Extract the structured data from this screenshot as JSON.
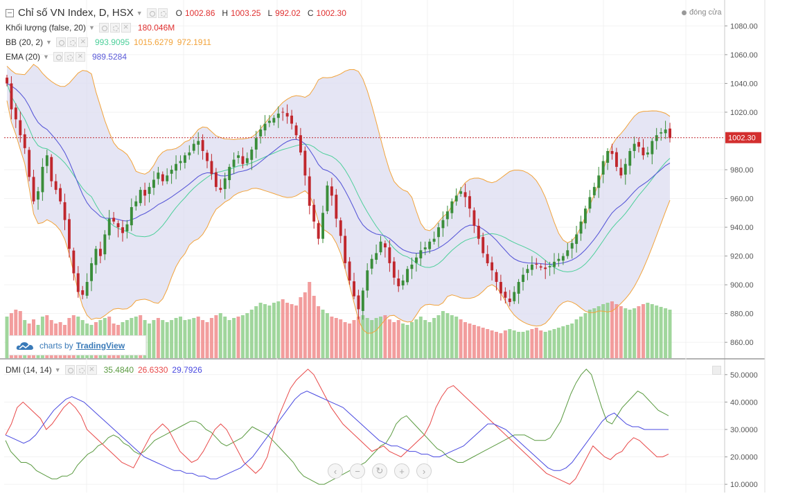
{
  "header": {
    "title": "Chỉ số VN Index, D, HSX",
    "ohlc": [
      {
        "label": "O",
        "value": "1002.86"
      },
      {
        "label": "H",
        "value": "1003.25"
      },
      {
        "label": "L",
        "value": "992.02"
      },
      {
        "label": "C",
        "value": "1002.30"
      }
    ],
    "market_status": "đóng cửa"
  },
  "indicators": {
    "volume": {
      "name": "Khối lượng (false, 20)",
      "value": "180.046M",
      "color": "#e03030"
    },
    "bb": {
      "name": "BB (20, 2)",
      "basis": "993.9095",
      "upper": "1015.6279",
      "lower": "972.1911",
      "basis_color": "#4ccf9a",
      "band_color": "#f2a33a"
    },
    "ema": {
      "name": "EMA (20)",
      "value": "989.5284",
      "color": "#5a5ad8"
    },
    "dmi": {
      "name": "DMI (14, 14)",
      "plus_di": "35.4840",
      "minus_di": "26.6330",
      "adx": "29.7926",
      "plus_color": "#5a9a40",
      "minus_color": "#e84848",
      "adx_color": "#4848e0"
    }
  },
  "branding": {
    "prefix": "charts by",
    "brand": "TradingView"
  },
  "nav": [
    "‹",
    "−",
    "↻",
    "+",
    "›"
  ],
  "chart_data": [
    {
      "type": "candlestick",
      "title": "Chỉ số VN Index, D, HSX",
      "ylim": [
        849,
        1098
      ],
      "y_ticks": [
        "1080.00",
        "1060.00",
        "1040.00",
        "1020.00",
        "980.00",
        "960.00",
        "940.00",
        "920.00",
        "900.00",
        "880.00",
        "860.00"
      ],
      "last_price": "1002.30",
      "closes": [
        1040,
        1022,
        1015,
        1004,
        995,
        975,
        958,
        965,
        982,
        990,
        972,
        966,
        958,
        945,
        925,
        908,
        895,
        893,
        902,
        915,
        925,
        920,
        935,
        946,
        944,
        940,
        936,
        942,
        954,
        958,
        966,
        962,
        968,
        973,
        978,
        972,
        976,
        980,
        984,
        986,
        990,
        992,
        998,
        1000,
        993,
        986,
        977,
        968,
        966,
        974,
        982,
        987,
        990,
        984,
        988,
        994,
        1002,
        1008,
        1012,
        1014,
        1016,
        1019,
        1020,
        1017,
        1012,
        1004,
        992,
        976,
        955,
        944,
        932,
        950,
        969,
        962,
        946,
        934,
        915,
        903,
        892,
        883,
        896,
        910,
        918,
        922,
        930,
        926,
        915,
        905,
        899,
        903,
        911,
        914,
        919,
        924,
        926,
        930,
        932,
        940,
        945,
        951,
        958,
        962,
        965,
        961,
        953,
        941,
        932,
        922,
        915,
        910,
        902,
        894,
        891,
        888,
        895,
        902,
        907,
        911,
        914,
        914,
        912,
        911,
        913,
        916,
        918,
        920,
        924,
        929,
        935,
        944,
        953,
        961,
        968,
        976,
        986,
        993,
        991,
        982,
        976,
        984,
        993,
        998,
        996,
        990,
        992,
        1000,
        1004,
        1006,
        1008,
        1002
      ],
      "volume_heights": [
        60,
        65,
        70,
        68,
        55,
        50,
        56,
        48,
        60,
        62,
        55,
        50,
        52,
        48,
        58,
        62,
        60,
        55,
        50,
        48,
        52,
        55,
        58,
        60,
        50,
        48,
        52,
        55,
        58,
        60,
        62,
        55,
        50,
        55,
        58,
        55,
        52,
        55,
        58,
        60,
        55,
        56,
        58,
        60,
        55,
        52,
        58,
        62,
        65,
        60,
        55,
        58,
        60,
        62,
        65,
        70,
        75,
        80,
        78,
        76,
        80,
        82,
        85,
        80,
        78,
        76,
        88,
        95,
        110,
        90,
        75,
        70,
        65,
        60,
        58,
        56,
        52,
        50,
        55,
        60,
        62,
        58,
        55,
        58,
        60,
        62,
        56,
        52,
        55,
        50,
        48,
        52,
        56,
        60,
        55,
        52,
        58,
        62,
        68,
        65,
        62,
        60,
        56,
        52,
        50,
        48,
        46,
        44,
        42,
        40,
        38,
        36,
        40,
        42,
        40,
        38,
        38,
        40,
        42,
        44,
        40,
        38,
        40,
        42,
        44,
        46,
        48,
        50,
        56,
        60,
        65,
        70,
        72,
        75,
        78,
        80,
        82,
        78,
        75,
        72,
        70,
        72,
        75,
        78,
        80,
        78,
        76,
        74,
        72,
        70,
        68
      ],
      "volume_up": [
        true,
        false,
        false,
        false,
        true,
        false,
        false,
        true,
        true,
        false,
        false,
        false,
        false,
        false,
        false,
        false,
        true,
        true,
        true,
        true,
        false,
        true,
        true,
        false,
        false,
        false,
        true,
        true,
        true,
        true,
        false,
        true,
        true,
        true,
        false,
        true,
        true,
        true,
        true,
        true,
        true,
        true,
        true,
        false,
        false,
        false,
        false,
        false,
        true,
        true,
        true,
        true,
        false,
        true,
        true,
        true,
        true,
        true,
        true,
        true,
        true,
        true,
        false,
        false,
        false,
        false,
        false,
        false,
        false,
        false,
        false,
        true,
        true,
        false,
        false,
        false,
        false,
        false,
        false,
        false,
        true,
        true,
        true,
        true,
        true,
        false,
        false,
        false,
        false,
        true,
        true,
        true,
        true,
        true,
        true,
        true,
        true,
        true,
        true,
        true,
        true,
        true,
        false,
        false,
        false,
        false,
        false,
        false,
        false,
        false,
        false,
        false,
        false,
        true,
        true,
        true,
        true,
        true,
        false,
        false,
        false,
        true,
        true,
        true,
        true,
        true,
        true,
        true,
        true,
        true,
        true,
        true,
        true,
        true,
        true,
        true,
        false,
        false,
        false,
        true,
        true,
        true,
        false,
        false,
        true,
        true,
        true,
        true,
        true,
        true,
        false
      ]
    },
    {
      "type": "line",
      "title": "DMI (14, 14)",
      "ylim": [
        7,
        55
      ],
      "y_ticks": [
        "50.0000",
        "40.0000",
        "30.0000",
        "20.0000",
        "10.0000"
      ],
      "series": [
        {
          "name": "+DI",
          "values": [
            26,
            22,
            20,
            18,
            18,
            17,
            15,
            14,
            13,
            12,
            12,
            13,
            13,
            14,
            17,
            19,
            21,
            22,
            24,
            25,
            27,
            28,
            27,
            25,
            24,
            22,
            21,
            22,
            24,
            26,
            27,
            28,
            29,
            30,
            31,
            32,
            33,
            33,
            32,
            30,
            29,
            27,
            25,
            24,
            25,
            26,
            27,
            29,
            31,
            30,
            29,
            28,
            26,
            24,
            22,
            20,
            18,
            15,
            13,
            12,
            11,
            10,
            10,
            11,
            12,
            13,
            14,
            15,
            16,
            17,
            18,
            20,
            22,
            24,
            25,
            28,
            32,
            34,
            35,
            33,
            31,
            29,
            27,
            25,
            23,
            22,
            20,
            19,
            18,
            18,
            19,
            20,
            21,
            22,
            23,
            24,
            25,
            26,
            27,
            28,
            28,
            28,
            27,
            26,
            26,
            26,
            27,
            30,
            33,
            38,
            43,
            47,
            50,
            52,
            50,
            44,
            38,
            33,
            32,
            35,
            38,
            40,
            42,
            44,
            43,
            41,
            39,
            37,
            36,
            35
          ]
        },
        {
          "name": "-DI",
          "values": [
            28,
            32,
            38,
            40,
            38,
            36,
            34,
            30,
            32,
            35,
            38,
            40,
            38,
            35,
            30,
            28,
            26,
            24,
            22,
            20,
            18,
            17,
            16,
            20,
            24,
            28,
            30,
            32,
            30,
            26,
            22,
            20,
            18,
            19,
            22,
            26,
            30,
            32,
            30,
            26,
            22,
            18,
            16,
            14,
            16,
            20,
            28,
            35,
            40,
            45,
            48,
            50,
            52,
            50,
            46,
            42,
            38,
            35,
            32,
            30,
            28,
            26,
            24,
            22,
            23,
            24,
            22,
            21,
            20,
            22,
            24,
            26,
            28,
            32,
            38,
            42,
            45,
            46,
            44,
            42,
            40,
            38,
            36,
            34,
            32,
            30,
            28,
            26,
            24,
            22,
            20,
            18,
            16,
            14,
            13,
            12,
            11,
            10,
            12,
            16,
            20,
            24,
            22,
            20,
            19,
            21,
            22,
            25,
            27,
            26,
            24,
            22,
            20,
            20,
            21
          ]
        },
        {
          "name": "ADX",
          "values": [
            28,
            27,
            26,
            25,
            26,
            28,
            31,
            34,
            37,
            39,
            41,
            42,
            41,
            40,
            38,
            36,
            34,
            32,
            30,
            28,
            26,
            24,
            22,
            20,
            19,
            18,
            17,
            16,
            15,
            15,
            14,
            14,
            13,
            13,
            12,
            12,
            13,
            14,
            15,
            16,
            18,
            20,
            23,
            26,
            29,
            32,
            35,
            38,
            41,
            43,
            44,
            43,
            42,
            41,
            40,
            39,
            38,
            36,
            34,
            32,
            30,
            28,
            26,
            25,
            24,
            24,
            23,
            22,
            22,
            21,
            21,
            20,
            20,
            21,
            22,
            23,
            24,
            26,
            28,
            30,
            32,
            32,
            31,
            30,
            28,
            26,
            24,
            22,
            20,
            18,
            16,
            15,
            15,
            16,
            18,
            21,
            24,
            27,
            30,
            33,
            35,
            36,
            34,
            32,
            31,
            31,
            30,
            30,
            30,
            30,
            30
          ]
        }
      ]
    }
  ]
}
